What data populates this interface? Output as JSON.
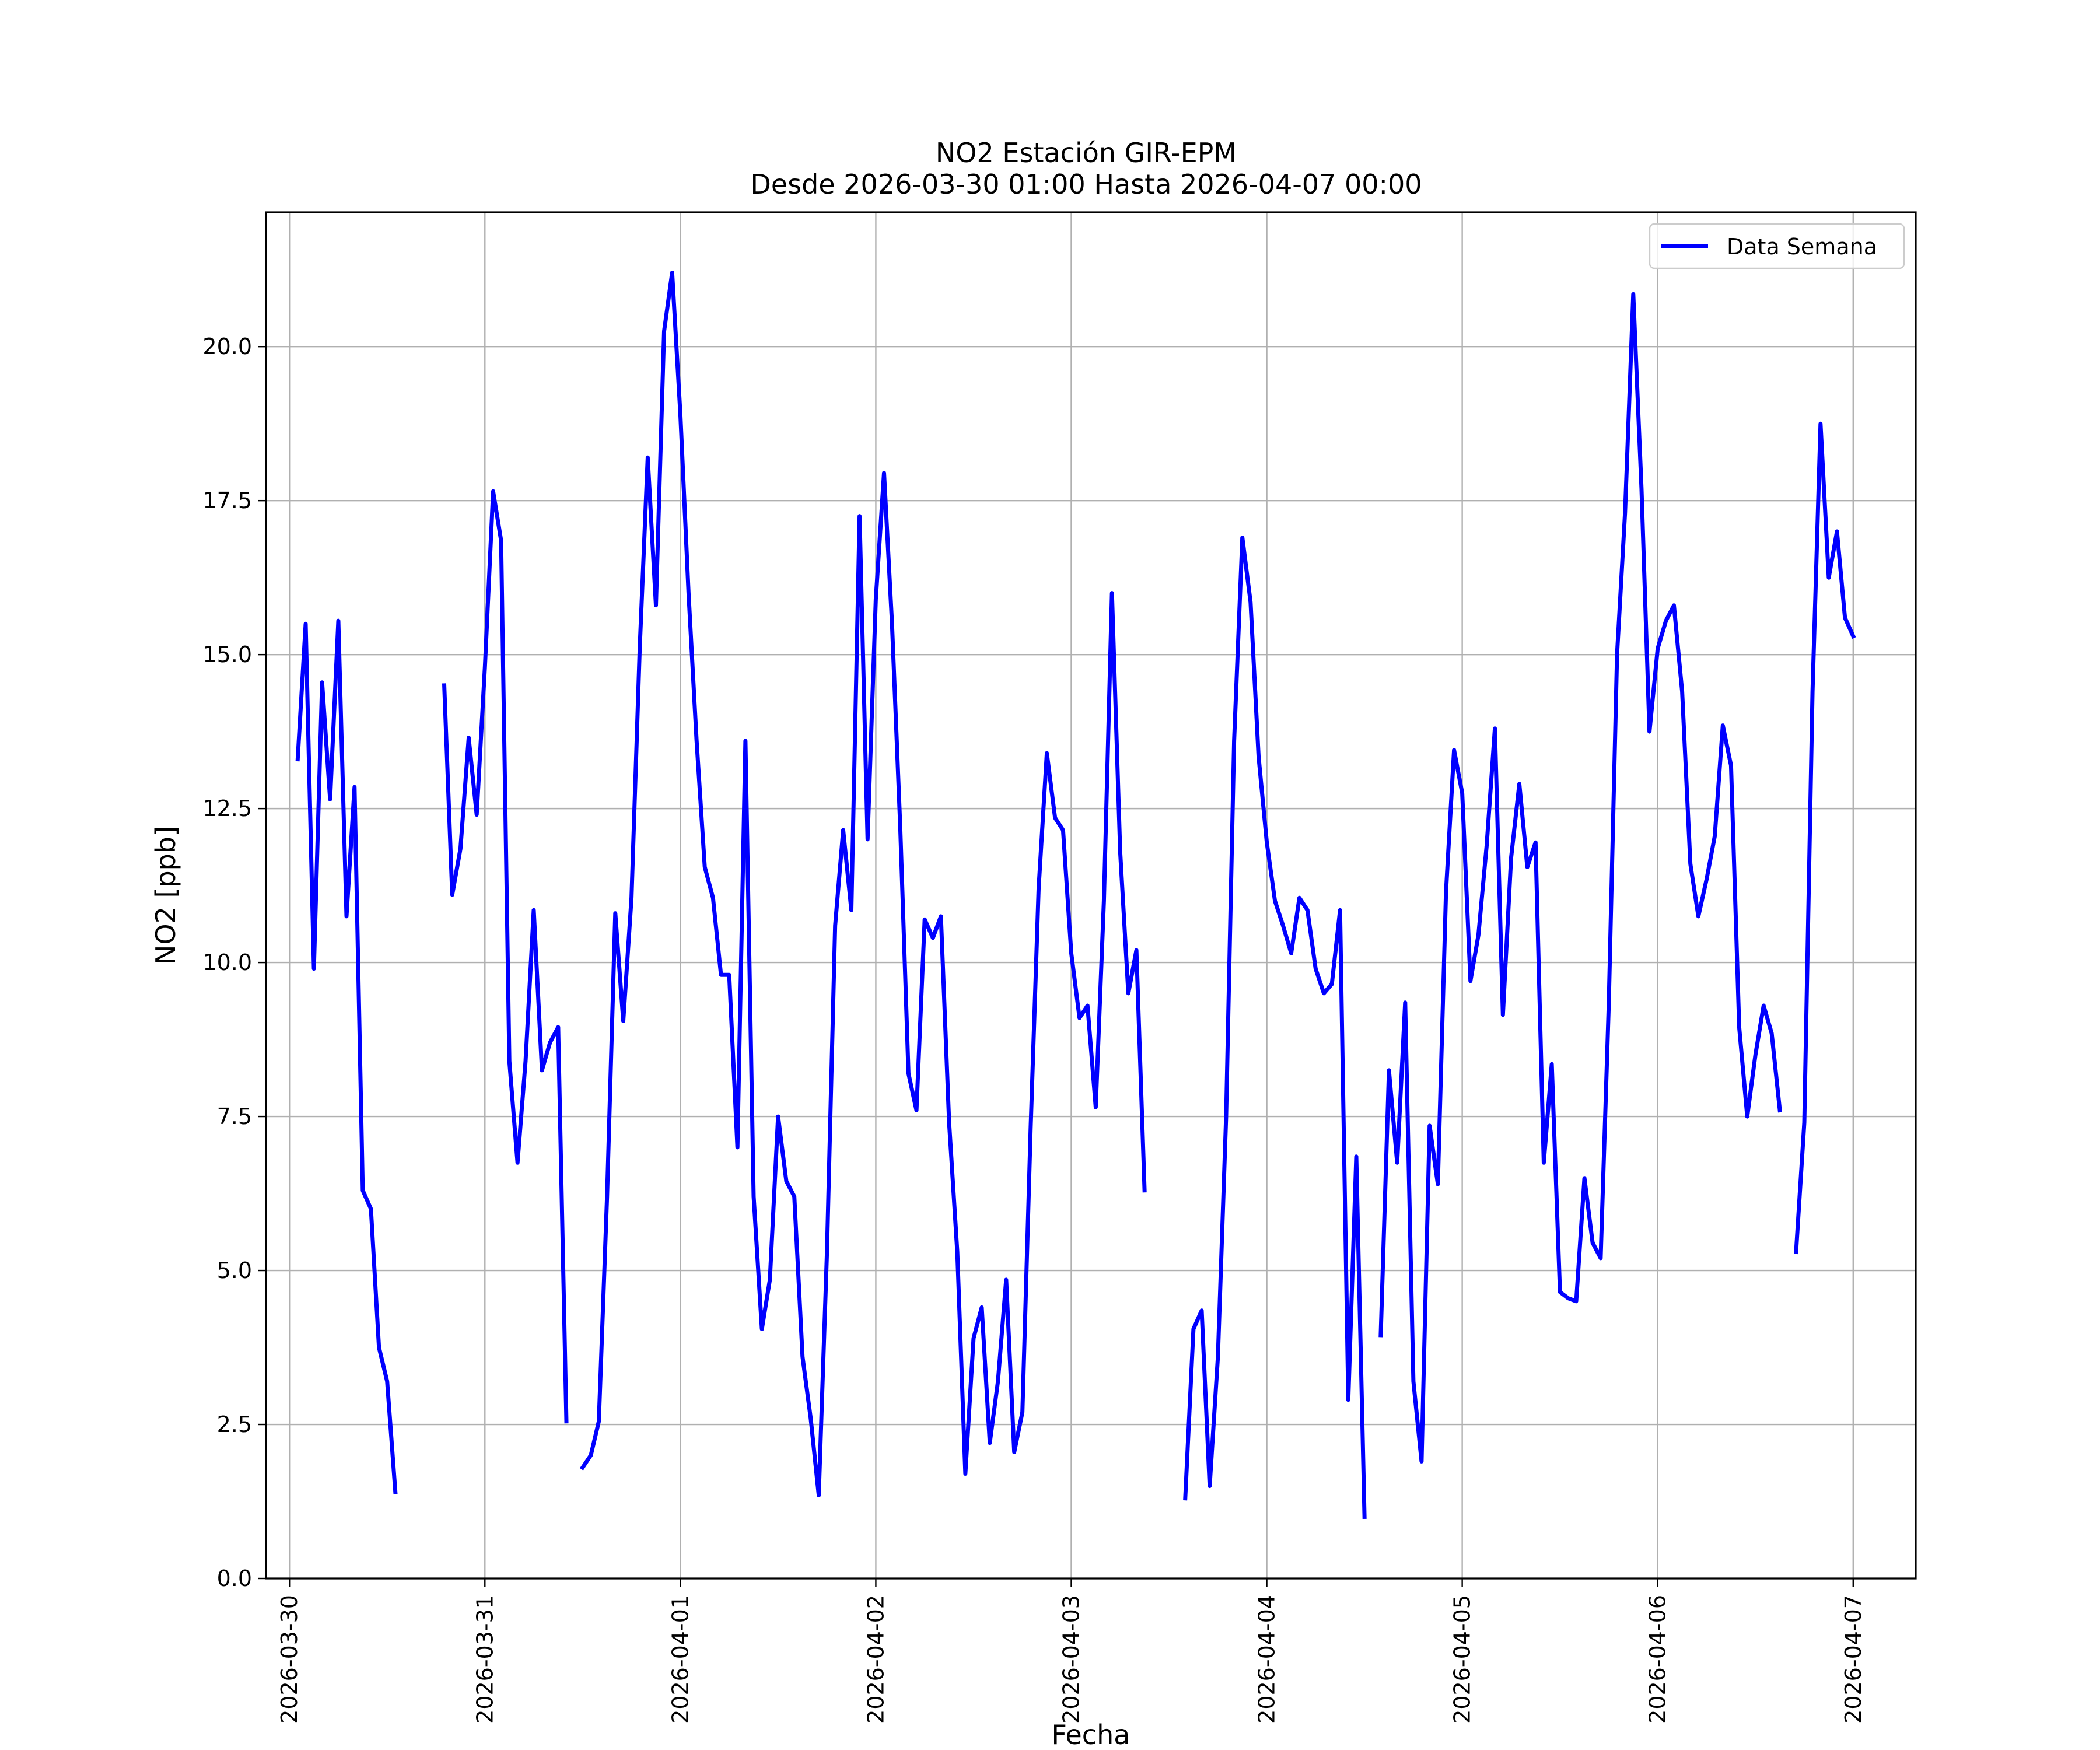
{
  "chart_data": {
    "type": "line",
    "title": "NO2 Estación GIR-EPM",
    "subtitle": "Desde 2026-03-30 01:00 Hasta 2026-04-07 00:00",
    "xlabel": "Fecha",
    "ylabel": "NO2 [ppb]",
    "xlim_days": [
      -0.12,
      8.32
    ],
    "ylim": [
      0.0,
      22.18
    ],
    "grid": true,
    "legend_position": "top-right",
    "x_tick_labels": [
      "2026-03-30",
      "2026-03-31",
      "2026-04-01",
      "2026-04-02",
      "2026-04-03",
      "2026-04-04",
      "2026-04-05",
      "2026-04-06",
      "2026-04-07"
    ],
    "x_tick_positions_days": [
      0,
      1,
      2,
      3,
      4,
      5,
      6,
      7,
      8
    ],
    "y_tick_labels": [
      "0.0",
      "2.5",
      "5.0",
      "7.5",
      "10.0",
      "12.5",
      "15.0",
      "17.5",
      "20.0"
    ],
    "y_tick_values": [
      0,
      2.5,
      5,
      7.5,
      10,
      12.5,
      15,
      17.5,
      20
    ],
    "x_unit": "days since 2026-03-30 00:00",
    "series": [
      {
        "name": "Data Semana",
        "color": "#0000ff",
        "segments": [
          [
            [
              0.042,
              13.3
            ],
            [
              0.083,
              15.5
            ],
            [
              0.125,
              9.9
            ],
            [
              0.167,
              14.55
            ],
            [
              0.208,
              12.65
            ],
            [
              0.25,
              15.55
            ],
            [
              0.292,
              10.75
            ],
            [
              0.333,
              12.85
            ],
            [
              0.375,
              6.3
            ],
            [
              0.417,
              6.0
            ],
            [
              0.458,
              3.75
            ],
            [
              0.5,
              3.2
            ],
            [
              0.542,
              1.4
            ]
          ],
          [
            [
              0.792,
              14.5
            ],
            [
              0.833,
              11.1
            ],
            [
              0.875,
              11.85
            ],
            [
              0.917,
              13.65
            ],
            [
              0.958,
              12.4
            ],
            [
              1.0,
              14.8
            ],
            [
              1.042,
              17.65
            ],
            [
              1.083,
              16.85
            ],
            [
              1.125,
              8.4
            ],
            [
              1.167,
              6.75
            ],
            [
              1.208,
              8.4
            ],
            [
              1.25,
              10.85
            ],
            [
              1.292,
              8.25
            ],
            [
              1.333,
              8.7
            ],
            [
              1.375,
              8.95
            ],
            [
              1.417,
              2.55
            ]
          ],
          [
            [
              1.5,
              1.8
            ],
            [
              1.542,
              2.0
            ],
            [
              1.583,
              2.55
            ],
            [
              1.625,
              6.2
            ],
            [
              1.667,
              10.8
            ],
            [
              1.708,
              9.05
            ],
            [
              1.75,
              11.05
            ],
            [
              1.792,
              15.1
            ],
            [
              1.833,
              18.2
            ],
            [
              1.875,
              15.8
            ],
            [
              1.917,
              20.25
            ],
            [
              1.958,
              21.2
            ],
            [
              2.0,
              18.9
            ],
            [
              2.042,
              16.0
            ],
            [
              2.083,
              13.6
            ],
            [
              2.125,
              11.55
            ],
            [
              2.167,
              11.05
            ],
            [
              2.208,
              9.8
            ],
            [
              2.25,
              9.8
            ],
            [
              2.292,
              7.0
            ],
            [
              2.333,
              13.6
            ],
            [
              2.375,
              6.2
            ],
            [
              2.417,
              4.05
            ],
            [
              2.458,
              4.85
            ],
            [
              2.5,
              7.5
            ],
            [
              2.542,
              6.45
            ],
            [
              2.583,
              6.2
            ],
            [
              2.625,
              3.6
            ],
            [
              2.667,
              2.6
            ],
            [
              2.708,
              1.35
            ],
            [
              2.75,
              5.3
            ],
            [
              2.792,
              10.6
            ],
            [
              2.833,
              12.15
            ],
            [
              2.875,
              10.85
            ],
            [
              2.917,
              17.25
            ],
            [
              2.958,
              12.0
            ],
            [
              3.0,
              15.9
            ],
            [
              3.042,
              17.95
            ],
            [
              3.083,
              15.5
            ],
            [
              3.125,
              12.2
            ],
            [
              3.167,
              8.2
            ],
            [
              3.208,
              7.6
            ],
            [
              3.25,
              10.7
            ],
            [
              3.292,
              10.4
            ],
            [
              3.333,
              10.75
            ],
            [
              3.375,
              7.4
            ],
            [
              3.417,
              5.3
            ],
            [
              3.458,
              1.7
            ],
            [
              3.5,
              3.9
            ],
            [
              3.542,
              4.4
            ],
            [
              3.583,
              2.2
            ],
            [
              3.625,
              3.2
            ],
            [
              3.667,
              4.85
            ],
            [
              3.708,
              2.05
            ],
            [
              3.75,
              2.7
            ],
            [
              3.792,
              7.3
            ],
            [
              3.833,
              11.2
            ],
            [
              3.875,
              13.4
            ],
            [
              3.917,
              12.35
            ],
            [
              3.958,
              12.15
            ],
            [
              4.0,
              10.15
            ],
            [
              4.042,
              9.1
            ],
            [
              4.083,
              9.3
            ],
            [
              4.125,
              7.65
            ],
            [
              4.167,
              11.0
            ],
            [
              4.208,
              16.0
            ],
            [
              4.25,
              11.8
            ],
            [
              4.292,
              9.5
            ],
            [
              4.333,
              10.2
            ],
            [
              4.375,
              6.3
            ]
          ],
          [
            [
              4.583,
              1.3
            ],
            [
              4.625,
              4.05
            ],
            [
              4.667,
              4.35
            ],
            [
              4.708,
              1.5
            ],
            [
              4.75,
              3.6
            ],
            [
              4.792,
              7.5
            ],
            [
              4.833,
              13.6
            ],
            [
              4.875,
              16.9
            ],
            [
              4.917,
              15.85
            ],
            [
              4.958,
              13.35
            ],
            [
              5.0,
              11.95
            ],
            [
              5.042,
              11.0
            ],
            [
              5.083,
              10.6
            ],
            [
              5.125,
              10.15
            ],
            [
              5.167,
              11.05
            ],
            [
              5.208,
              10.85
            ],
            [
              5.25,
              9.9
            ],
            [
              5.292,
              9.5
            ],
            [
              5.333,
              9.65
            ],
            [
              5.375,
              10.85
            ],
            [
              5.417,
              2.9
            ],
            [
              5.458,
              6.85
            ],
            [
              5.5,
              1.0
            ]
          ],
          [
            [
              5.583,
              3.95
            ],
            [
              5.625,
              8.25
            ],
            [
              5.667,
              6.75
            ],
            [
              5.708,
              9.35
            ],
            [
              5.75,
              3.2
            ],
            [
              5.792,
              1.9
            ],
            [
              5.833,
              7.35
            ],
            [
              5.875,
              6.4
            ],
            [
              5.917,
              11.15
            ],
            [
              5.958,
              13.45
            ],
            [
              6.0,
              12.75
            ],
            [
              6.042,
              9.7
            ],
            [
              6.083,
              10.45
            ],
            [
              6.125,
              11.9
            ],
            [
              6.167,
              13.8
            ],
            [
              6.208,
              9.15
            ],
            [
              6.25,
              11.7
            ],
            [
              6.292,
              12.9
            ],
            [
              6.333,
              11.55
            ],
            [
              6.375,
              11.95
            ],
            [
              6.417,
              6.75
            ],
            [
              6.458,
              8.35
            ],
            [
              6.5,
              4.65
            ],
            [
              6.542,
              4.55
            ],
            [
              6.583,
              4.5
            ],
            [
              6.625,
              6.5
            ],
            [
              6.667,
              5.45
            ],
            [
              6.708,
              5.2
            ],
            [
              6.75,
              9.35
            ],
            [
              6.792,
              15.0
            ],
            [
              6.833,
              17.3
            ],
            [
              6.875,
              20.85
            ],
            [
              6.917,
              17.7
            ],
            [
              6.958,
              13.75
            ],
            [
              7.0,
              15.1
            ],
            [
              7.042,
              15.55
            ],
            [
              7.083,
              15.8
            ],
            [
              7.125,
              14.4
            ],
            [
              7.167,
              11.6
            ],
            [
              7.208,
              10.75
            ],
            [
              7.25,
              11.35
            ],
            [
              7.292,
              12.05
            ],
            [
              7.333,
              13.85
            ],
            [
              7.375,
              13.2
            ],
            [
              7.417,
              8.95
            ],
            [
              7.458,
              7.5
            ],
            [
              7.5,
              8.5
            ],
            [
              7.542,
              9.3
            ],
            [
              7.583,
              8.85
            ],
            [
              7.625,
              7.6
            ]
          ],
          [
            [
              7.708,
              5.3
            ],
            [
              7.75,
              7.4
            ],
            [
              7.792,
              14.4
            ],
            [
              7.833,
              18.75
            ],
            [
              7.875,
              16.25
            ],
            [
              7.917,
              17.0
            ],
            [
              7.958,
              15.6
            ],
            [
              8.0,
              15.3
            ]
          ]
        ]
      }
    ]
  }
}
